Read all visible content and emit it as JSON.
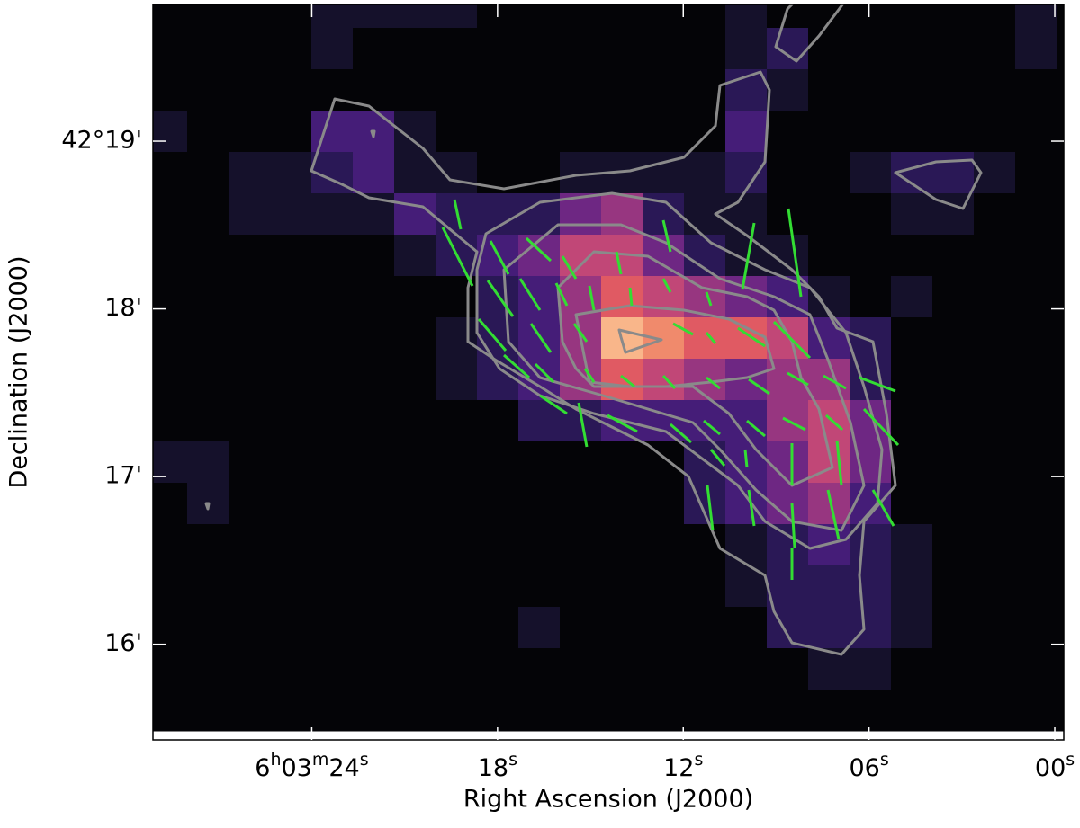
{
  "chart_data": {
    "type": "heatmap",
    "xlabel": "Right Ascension (J2000)",
    "ylabel": "Declination (J2000)",
    "xlim": [
      29.13,
      -0.29
    ],
    "ylim": [
      15.43,
      19.815
    ],
    "xticks": [
      {
        "value": 24,
        "label": "6h03m24s"
      },
      {
        "value": 18,
        "label": "18s"
      },
      {
        "value": 12,
        "label": "12s"
      },
      {
        "value": 6,
        "label": "06s"
      },
      {
        "value": 0,
        "label": "00s"
      }
    ],
    "yticks": [
      {
        "value": 19,
        "label": "42°19'"
      },
      {
        "value": 18,
        "label": "18'"
      },
      {
        "value": 17,
        "label": "17'"
      },
      {
        "value": 16,
        "label": "16'"
      }
    ],
    "colors": [
      "#040407",
      "#15112b",
      "#2a1856",
      "#451d78",
      "#6e2783",
      "#973680",
      "#c14777",
      "#e05a63",
      "#f08a6c",
      "#f9b68a"
    ],
    "z": [
      [
        0,
        0,
        0,
        0,
        1,
        1,
        1,
        1,
        0,
        0,
        0,
        0,
        0,
        0,
        1,
        0,
        0,
        0,
        0,
        0,
        0,
        1,
        0
      ],
      [
        0,
        0,
        0,
        0,
        1,
        0,
        0,
        0,
        0,
        0,
        0,
        0,
        0,
        0,
        1,
        2,
        0,
        0,
        0,
        0,
        0,
        1,
        0
      ],
      [
        0,
        0,
        0,
        0,
        0,
        0,
        0,
        0,
        0,
        0,
        0,
        0,
        0,
        0,
        2,
        1,
        0,
        0,
        0,
        0,
        0,
        0,
        0
      ],
      [
        1,
        0,
        0,
        0,
        3,
        3,
        1,
        0,
        0,
        0,
        0,
        0,
        0,
        0,
        3,
        0,
        0,
        0,
        0,
        0,
        0,
        0,
        0
      ],
      [
        0,
        0,
        1,
        1,
        2,
        3,
        1,
        1,
        0,
        0,
        1,
        1,
        1,
        1,
        2,
        0,
        0,
        1,
        2,
        2,
        1,
        0,
        0
      ],
      [
        0,
        0,
        1,
        1,
        1,
        1,
        3,
        2,
        2,
        2,
        4,
        5,
        2,
        1,
        1,
        0,
        0,
        0,
        1,
        1,
        0,
        0,
        0
      ],
      [
        0,
        0,
        0,
        0,
        0,
        0,
        1,
        2,
        3,
        4,
        6,
        6,
        4,
        2,
        1,
        1,
        0,
        0,
        0,
        0,
        0,
        0,
        0
      ],
      [
        0,
        0,
        0,
        0,
        0,
        0,
        0,
        0,
        2,
        3,
        5,
        7,
        6,
        5,
        4,
        3,
        1,
        0,
        1,
        0,
        0,
        0,
        0
      ],
      [
        0,
        0,
        0,
        0,
        0,
        0,
        0,
        1,
        2,
        3,
        5,
        9,
        8,
        7,
        7,
        6,
        3,
        2,
        0,
        0,
        0,
        0,
        0
      ],
      [
        0,
        0,
        0,
        0,
        0,
        0,
        0,
        1,
        2,
        3,
        5,
        7,
        6,
        5,
        4,
        5,
        5,
        2,
        0,
        0,
        0,
        0,
        0
      ],
      [
        0,
        0,
        0,
        0,
        0,
        0,
        0,
        0,
        0,
        2,
        2,
        3,
        3,
        3,
        3,
        5,
        6,
        4,
        0,
        0,
        0,
        0,
        0
      ],
      [
        1,
        1,
        0,
        0,
        0,
        0,
        0,
        0,
        0,
        0,
        0,
        0,
        0,
        2,
        3,
        4,
        6,
        4,
        0,
        0,
        0,
        0,
        0
      ],
      [
        0,
        1,
        0,
        0,
        0,
        0,
        0,
        0,
        0,
        0,
        0,
        0,
        0,
        2,
        3,
        4,
        5,
        3,
        0,
        0,
        0,
        0,
        0
      ],
      [
        0,
        0,
        0,
        0,
        0,
        0,
        0,
        0,
        0,
        0,
        0,
        0,
        0,
        0,
        1,
        2,
        3,
        2,
        1,
        0,
        0,
        0,
        0
      ],
      [
        0,
        0,
        0,
        0,
        0,
        0,
        0,
        0,
        0,
        0,
        0,
        0,
        0,
        0,
        1,
        2,
        2,
        2,
        1,
        0,
        0,
        0,
        0
      ],
      [
        0,
        0,
        0,
        0,
        0,
        0,
        0,
        0,
        0,
        1,
        0,
        0,
        0,
        0,
        0,
        2,
        2,
        2,
        1,
        0,
        0,
        0,
        0
      ],
      [
        0,
        0,
        0,
        0,
        0,
        0,
        0,
        0,
        0,
        0,
        0,
        0,
        0,
        0,
        0,
        0,
        1,
        1,
        0,
        0,
        0,
        0,
        0
      ],
      [
        0,
        0,
        0,
        0,
        0,
        0,
        0,
        0,
        0,
        0,
        0,
        0,
        0,
        0,
        0,
        0,
        0,
        0,
        0,
        0,
        0,
        0,
        0
      ]
    ]
  }
}
